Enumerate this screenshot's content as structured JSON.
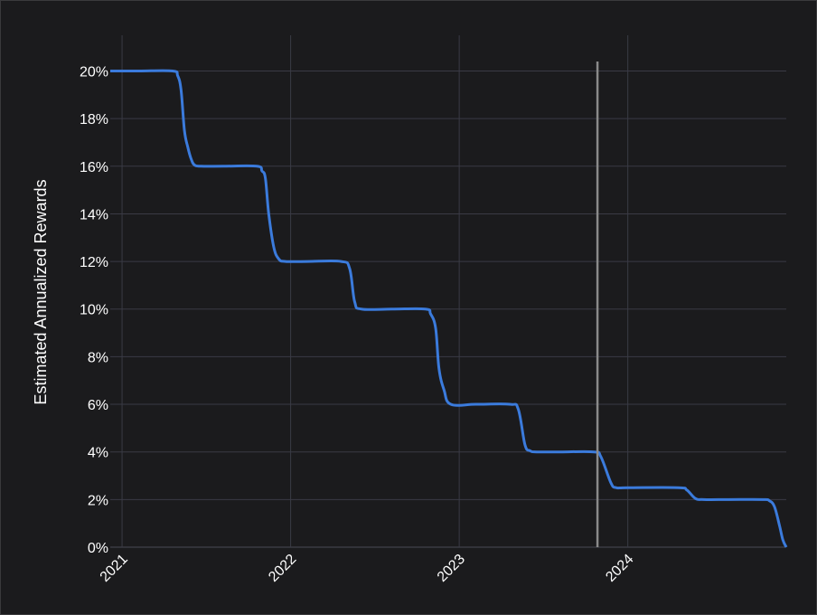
{
  "chart_data": {
    "type": "line",
    "ylabel": "Estimated Annualized Rewards",
    "xlabel": "",
    "x_ticks": [
      "2021",
      "2022",
      "2023",
      "2024"
    ],
    "y_ticks": [
      "0%",
      "2%",
      "4%",
      "6%",
      "8%",
      "10%",
      "12%",
      "14%",
      "16%",
      "18%",
      "20%"
    ],
    "ylim": [
      0,
      21.5
    ],
    "xlim": [
      2020.93,
      2024.94
    ],
    "grid": true,
    "marker_line_x": 2023.82,
    "series": [
      {
        "x": [
          2020.93,
          2021.1,
          2021.3,
          2021.33,
          2021.35,
          2021.37,
          2021.39,
          2021.41,
          2021.43,
          2021.47,
          2021.6,
          2021.8,
          2021.83,
          2021.85,
          2021.87,
          2021.9,
          2021.93,
          2021.97,
          2022.1,
          2022.3,
          2022.35,
          2022.38,
          2022.42,
          2022.6,
          2022.8,
          2022.83,
          2022.86,
          2022.88,
          2022.91,
          2022.95,
          2023.1,
          2023.3,
          2023.35,
          2023.39,
          2023.42,
          2023.46,
          2023.6,
          2023.8,
          2023.84,
          2023.9,
          2023.93,
          2024.0,
          2024.3,
          2024.35,
          2024.4,
          2024.45,
          2024.6,
          2024.8,
          2024.84,
          2024.87,
          2024.9,
          2024.92,
          2024.94
        ],
        "values": [
          20,
          20,
          20,
          19.8,
          19.2,
          17.5,
          16.8,
          16.3,
          16.05,
          16,
          16,
          16,
          15.8,
          15.5,
          14,
          12.6,
          12.1,
          12,
          12,
          12,
          11.7,
          10.3,
          10,
          10,
          10,
          9.8,
          9.2,
          7.5,
          6.6,
          6,
          6,
          6,
          5.8,
          4.3,
          4.05,
          4,
          4,
          4,
          3.8,
          2.7,
          2.5,
          2.5,
          2.5,
          2.4,
          2.05,
          2,
          2,
          2,
          1.95,
          1.7,
          0.9,
          0.3,
          0
        ]
      }
    ],
    "colors": {
      "line": "#3b7bdc",
      "marker_line": "#8a8a8a",
      "grid": "#3a3b45",
      "background": "#1b1b1d"
    }
  }
}
